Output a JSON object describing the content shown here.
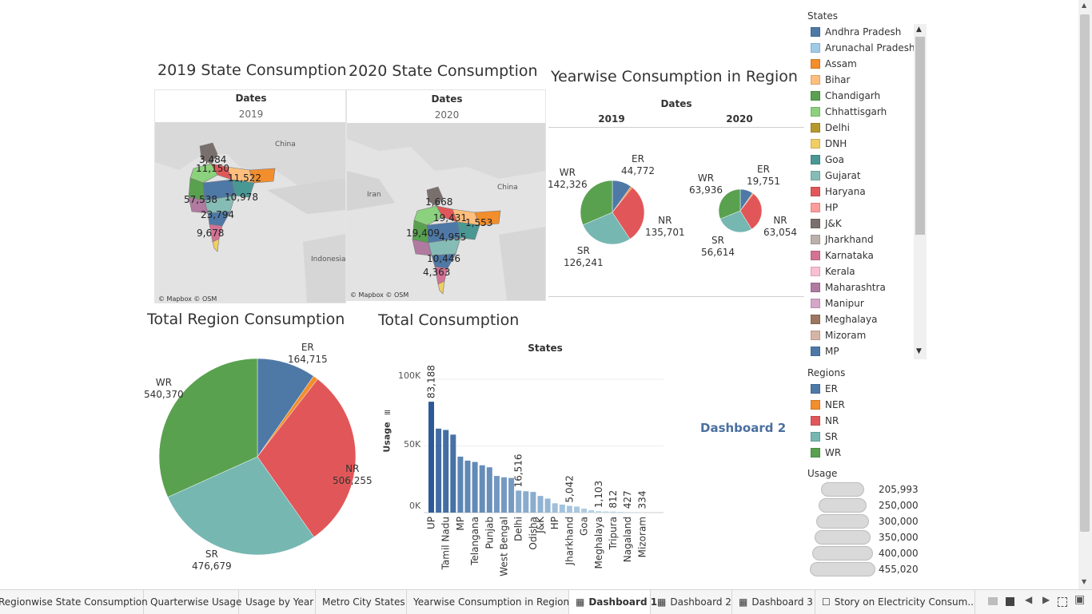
{
  "titles": {
    "map2019": "2019 State Consumption",
    "map2020": "2020 State Consumption",
    "yearwise": "Yearwise Consumption in Region",
    "totalRegion": "Total Region Consumption",
    "totalConsumption": "Total Consumption"
  },
  "maps": {
    "header": "Dates",
    "year2019": "2019",
    "year2020": "2020",
    "attribution": "© Mapbox © OSM",
    "places": {
      "china": "China",
      "iran": "Iran",
      "indonesia": "Indonesia"
    },
    "labels2019": [
      "3,484",
      "11,150",
      "11,522",
      "57,538",
      "10,978",
      "23,794",
      "9,678"
    ],
    "labels2020": [
      "1,668",
      "19,431",
      "1,553",
      "19,409",
      "4,955",
      "10,446",
      "4,363"
    ]
  },
  "yearwise": {
    "header": "Dates",
    "col2019": "2019",
    "col2020": "2020",
    "pie2019": [
      {
        "region": "ER",
        "value": "44,772"
      },
      {
        "region": "NR",
        "value": "135,701"
      },
      {
        "region": "SR",
        "value": "126,241"
      },
      {
        "region": "WR",
        "value": "142,326"
      }
    ],
    "pie2020": [
      {
        "region": "ER",
        "value": "19,751"
      },
      {
        "region": "NR",
        "value": "63,054"
      },
      {
        "region": "SR",
        "value": "56,614"
      },
      {
        "region": "WR",
        "value": "63,936"
      }
    ]
  },
  "totalRegion": {
    "labels": [
      {
        "region": "ER",
        "value": "164,715"
      },
      {
        "region": "NR",
        "value": "506,255"
      },
      {
        "region": "SR",
        "value": "476,679"
      },
      {
        "region": "WR",
        "value": "540,370"
      }
    ]
  },
  "totalConsumption": {
    "header": "States",
    "yaxis": "Usage",
    "yticks": [
      "100K",
      "50K",
      "0K"
    ],
    "xlabels": [
      "UP",
      "Tamil Nadu",
      "MP",
      "Telangana",
      "Punjab",
      "West Bengal",
      "Delhi",
      "Odisha",
      "J&K",
      "HP",
      "Jharkhand",
      "Goa",
      "Meghalaya",
      "Tripura",
      "Nagaland",
      "Mizoram"
    ],
    "valueLabels": [
      "83,188",
      "16,516",
      "5,042",
      "1,103",
      "812",
      "427",
      "334"
    ]
  },
  "chart_data": [
    {
      "type": "pie",
      "title": "Total Region Consumption",
      "categories": [
        "ER",
        "NER",
        "NR",
        "SR",
        "WR"
      ],
      "values": [
        164715,
        14000,
        506255,
        476679,
        540370
      ],
      "colors": [
        "#4e79a7",
        "#f28e2b",
        "#e15759",
        "#76b7b2",
        "#59a14f"
      ]
    },
    {
      "type": "pie",
      "title": "Yearwise Consumption in Region — 2019",
      "categories": [
        "ER",
        "NER",
        "NR",
        "SR",
        "WR"
      ],
      "values": [
        44772,
        4000,
        135701,
        126241,
        142326
      ]
    },
    {
      "type": "pie",
      "title": "Yearwise Consumption in Region — 2020",
      "categories": [
        "ER",
        "NER",
        "NR",
        "SR",
        "WR"
      ],
      "values": [
        19751,
        1800,
        63054,
        56614,
        63936
      ]
    },
    {
      "type": "bar",
      "title": "Total Consumption",
      "ylabel": "Usage",
      "ylim": [
        0,
        115000
      ],
      "values": [
        83188,
        63000,
        62000,
        58500,
        42000,
        39000,
        38000,
        35500,
        34000,
        27500,
        26500,
        26000,
        16516,
        16000,
        15500,
        12500,
        10500,
        7000,
        6000,
        5042,
        4500,
        3000,
        1800,
        1103,
        900,
        812,
        600,
        427,
        380,
        334
      ],
      "labeled": {
        "0": "83,188",
        "12": "16,516",
        "19": "5,042",
        "23": "1,103",
        "25": "812",
        "27": "427",
        "29": "334"
      }
    }
  ],
  "legend": {
    "statesTitle": "States",
    "states": [
      {
        "name": "Andhra Pradesh",
        "color": "#4e79a7"
      },
      {
        "name": "Arunachal Pradesh",
        "color": "#a0cbe8"
      },
      {
        "name": "Assam",
        "color": "#f28e2b"
      },
      {
        "name": "Bihar",
        "color": "#ffbe7d"
      },
      {
        "name": "Chandigarh",
        "color": "#59a14f"
      },
      {
        "name": "Chhattisgarh",
        "color": "#8cd17d"
      },
      {
        "name": "Delhi",
        "color": "#b6992d"
      },
      {
        "name": "DNH",
        "color": "#f1ce63"
      },
      {
        "name": "Goa",
        "color": "#499894"
      },
      {
        "name": "Gujarat",
        "color": "#86bcb6"
      },
      {
        "name": "Haryana",
        "color": "#e15759"
      },
      {
        "name": "HP",
        "color": "#ff9d9a"
      },
      {
        "name": "J&K",
        "color": "#79706e"
      },
      {
        "name": "Jharkhand",
        "color": "#bab0ac"
      },
      {
        "name": "Karnataka",
        "color": "#d37295"
      },
      {
        "name": "Kerala",
        "color": "#fabfd2"
      },
      {
        "name": "Maharashtra",
        "color": "#b07aa1"
      },
      {
        "name": "Manipur",
        "color": "#d4a6c8"
      },
      {
        "name": "Meghalaya",
        "color": "#9d7660"
      },
      {
        "name": "Mizoram",
        "color": "#d7b5a6"
      },
      {
        "name": "MP",
        "color": "#4e79a7"
      }
    ],
    "regionsTitle": "Regions",
    "regions": [
      {
        "name": "ER",
        "color": "#4e79a7"
      },
      {
        "name": "NER",
        "color": "#f28e2b"
      },
      {
        "name": "NR",
        "color": "#e15759"
      },
      {
        "name": "SR",
        "color": "#76b7b2"
      },
      {
        "name": "WR",
        "color": "#59a14f"
      }
    ],
    "usageTitle": "Usage",
    "usage": [
      "205,993",
      "250,000",
      "300,000",
      "350,000",
      "400,000",
      "455,020"
    ]
  },
  "dashboard2": "Dashboard 2",
  "tabs": [
    "Regionwise State Consumption",
    "Quarterwise Usage",
    "Usage by Year",
    "Metro City States",
    "Yearwise Consumption in Region",
    "Dashboard 1",
    "Dashboard 2",
    "Dashboard 3",
    "Story on Electricity Consum..."
  ],
  "activeTab": "Dashboard 1"
}
